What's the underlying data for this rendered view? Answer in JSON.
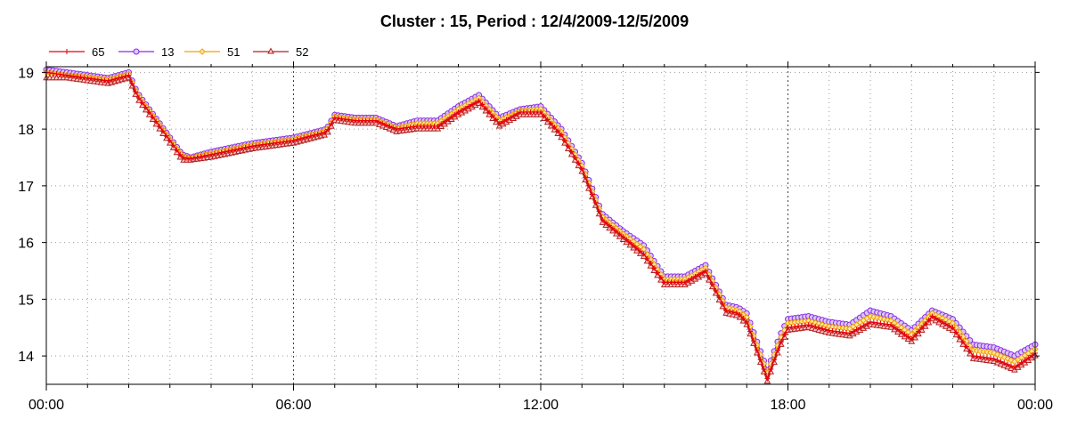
{
  "chart_data": {
    "type": "line",
    "title": "Cluster : 15, Period : 12/4/2009-12/5/2009",
    "xlabel": "",
    "ylabel": "",
    "x_tick_labels": [
      "00:00",
      "06:00",
      "12:00",
      "18:00",
      "00:00"
    ],
    "xlim": [
      0,
      24
    ],
    "ylim": [
      13.5,
      19.1
    ],
    "y_ticks": [
      14,
      15,
      16,
      17,
      18,
      19
    ],
    "grid": "dotted",
    "legend_position": "top-left",
    "key_x": [
      0,
      0.5,
      1,
      1.5,
      2,
      2.2,
      2.5,
      3,
      3.3,
      3.5,
      4,
      5,
      6,
      6.8,
      7,
      7.5,
      8,
      8.5,
      9,
      9.5,
      10,
      10.5,
      11,
      11.5,
      12,
      12.5,
      13,
      13.5,
      14,
      14.5,
      15,
      15.5,
      16,
      16.5,
      16.8,
      17,
      17.5,
      17.8,
      18,
      18.5,
      19,
      19.5,
      20,
      20.5,
      21,
      21.5,
      22,
      22.5,
      23,
      23.5,
      24
    ],
    "series": [
      {
        "name": "65",
        "color": "#e8000b",
        "marker": "plus",
        "values": [
          19.0,
          18.95,
          18.9,
          18.85,
          18.95,
          18.6,
          18.3,
          17.8,
          17.5,
          17.48,
          17.55,
          17.7,
          17.8,
          17.95,
          18.2,
          18.15,
          18.15,
          18.0,
          18.05,
          18.05,
          18.3,
          18.5,
          18.1,
          18.3,
          18.3,
          17.9,
          17.3,
          16.4,
          16.1,
          15.8,
          15.3,
          15.3,
          15.5,
          14.8,
          14.75,
          14.6,
          13.6,
          14.2,
          14.5,
          14.55,
          14.45,
          14.4,
          14.6,
          14.55,
          14.3,
          14.7,
          14.5,
          14.0,
          13.95,
          13.8,
          14.05
        ]
      },
      {
        "name": "13",
        "color": "#8a2be2",
        "marker": "circle",
        "values": [
          19.05,
          19.0,
          18.95,
          18.9,
          19.0,
          18.65,
          18.35,
          17.85,
          17.55,
          17.5,
          17.6,
          17.75,
          17.85,
          18.0,
          18.25,
          18.2,
          18.2,
          18.05,
          18.15,
          18.15,
          18.4,
          18.6,
          18.2,
          18.35,
          18.4,
          18.0,
          17.4,
          16.5,
          16.2,
          15.95,
          15.4,
          15.4,
          15.6,
          14.9,
          14.85,
          14.75,
          13.75,
          14.35,
          14.65,
          14.7,
          14.6,
          14.55,
          14.8,
          14.7,
          14.45,
          14.8,
          14.65,
          14.2,
          14.15,
          14.0,
          14.2
        ]
      },
      {
        "name": "51",
        "color": "#f0a000",
        "marker": "diamond",
        "values": [
          19.0,
          18.95,
          18.92,
          18.87,
          18.97,
          18.62,
          18.32,
          17.82,
          17.52,
          17.49,
          17.57,
          17.72,
          17.82,
          17.97,
          18.22,
          18.17,
          18.17,
          18.02,
          18.1,
          18.1,
          18.35,
          18.55,
          18.15,
          18.32,
          18.35,
          17.95,
          17.35,
          16.45,
          16.15,
          15.88,
          15.35,
          15.35,
          15.55,
          14.85,
          14.8,
          14.68,
          13.7,
          14.28,
          14.58,
          14.62,
          14.52,
          14.48,
          14.7,
          14.62,
          14.38,
          14.75,
          14.58,
          14.1,
          14.05,
          13.9,
          14.12
        ]
      },
      {
        "name": "52",
        "color": "#b22222",
        "marker": "triangle",
        "values": [
          18.9,
          18.9,
          18.85,
          18.8,
          18.9,
          18.55,
          18.25,
          17.75,
          17.45,
          17.45,
          17.5,
          17.65,
          17.75,
          17.9,
          18.15,
          18.1,
          18.1,
          17.95,
          18.0,
          18.0,
          18.25,
          18.45,
          18.05,
          18.25,
          18.25,
          17.85,
          17.25,
          16.35,
          16.05,
          15.75,
          15.25,
          15.25,
          15.45,
          14.75,
          14.7,
          14.55,
          13.55,
          14.15,
          14.45,
          14.5,
          14.4,
          14.35,
          14.55,
          14.5,
          14.25,
          14.65,
          14.45,
          13.95,
          13.9,
          13.75,
          14.0
        ]
      }
    ]
  }
}
